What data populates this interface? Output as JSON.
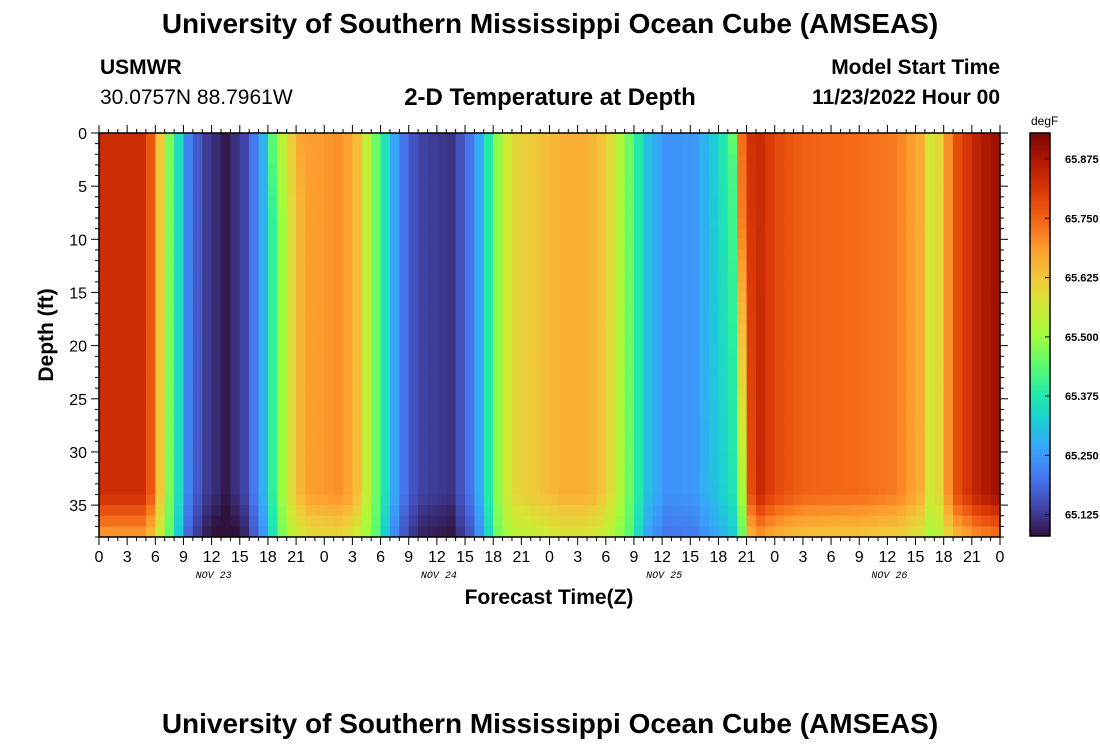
{
  "header": {
    "title": "University of Southern Mississippi Ocean Cube (AMSEAS)",
    "station": "USMWR",
    "coords": "30.0757N  88.7961W",
    "plot_title": "2-D Temperature at Depth",
    "start_label": "Model Start Time",
    "start_value": "11/23/2022 Hour 00"
  },
  "footer": {
    "title": "University of Southern Mississippi Ocean Cube (AMSEAS)"
  },
  "chart_data": {
    "type": "heatmap",
    "title": "2-D Temperature at Depth",
    "xlabel": "Forecast Time(Z)",
    "ylabel": "Depth (ft)",
    "x_ticks": [
      "0",
      "3",
      "6",
      "9",
      "12",
      "15",
      "18",
      "21",
      "0",
      "3",
      "6",
      "9",
      "12",
      "15",
      "18",
      "21",
      "0",
      "3",
      "6",
      "9",
      "12",
      "15",
      "18",
      "21",
      "0",
      "3",
      "6",
      "9",
      "12",
      "15",
      "18",
      "21",
      "0"
    ],
    "x_date_labels": [
      {
        "label": "NOV 23",
        "hour": 12
      },
      {
        "label": "NOV 24",
        "hour": 36
      },
      {
        "label": "NOV 25",
        "hour": 60
      },
      {
        "label": "NOV 26",
        "hour": 84
      }
    ],
    "xlim": [
      0,
      96
    ],
    "y_ticks": [
      0,
      5,
      10,
      15,
      20,
      25,
      30,
      35
    ],
    "ylim": [
      0,
      38
    ],
    "y_inverted": true,
    "colorbar": {
      "unit": "degF",
      "min": 65.08,
      "max": 65.93,
      "labels": [
        "65.875",
        "65.750",
        "65.625",
        "65.500",
        "65.375",
        "65.250",
        "65.125"
      ],
      "label_values": [
        65.875,
        65.75,
        65.625,
        65.5,
        65.375,
        65.25,
        65.125
      ]
    },
    "colormap": [
      "#30123b",
      "#4145ab",
      "#4675ed",
      "#39a2fc",
      "#1bcfd4",
      "#24eca6",
      "#61fc6c",
      "#a4fc3b",
      "#d1e834",
      "#f3c63a",
      "#fe9b2d",
      "#f36315",
      "#d93806",
      "#b11901",
      "#7a0403"
    ],
    "time_profile": [
      {
        "hour": 0,
        "temp": 65.83
      },
      {
        "hour": 5,
        "temp": 65.83
      },
      {
        "hour": 6.2,
        "temp": 65.68
      },
      {
        "hour": 7.2,
        "temp": 65.5
      },
      {
        "hour": 8.3,
        "temp": 65.38
      },
      {
        "hour": 9.5,
        "temp": 65.22
      },
      {
        "hour": 11,
        "temp": 65.14
      },
      {
        "hour": 13.5,
        "temp": 65.09
      },
      {
        "hour": 15.5,
        "temp": 65.14
      },
      {
        "hour": 17.3,
        "temp": 65.26
      },
      {
        "hour": 18.7,
        "temp": 65.42
      },
      {
        "hour": 20.3,
        "temp": 65.58
      },
      {
        "hour": 22,
        "temp": 65.68
      },
      {
        "hour": 26,
        "temp": 65.7
      },
      {
        "hour": 27.5,
        "temp": 65.64
      },
      {
        "hour": 29,
        "temp": 65.5
      },
      {
        "hour": 30.5,
        "temp": 65.36
      },
      {
        "hour": 32,
        "temp": 65.22
      },
      {
        "hour": 34,
        "temp": 65.14
      },
      {
        "hour": 37.5,
        "temp": 65.12
      },
      {
        "hour": 40,
        "temp": 65.22
      },
      {
        "hour": 41.5,
        "temp": 65.38
      },
      {
        "hour": 43,
        "temp": 65.54
      },
      {
        "hour": 44.5,
        "temp": 65.6
      },
      {
        "hour": 47,
        "temp": 65.63
      },
      {
        "hour": 49.5,
        "temp": 65.66
      },
      {
        "hour": 52,
        "temp": 65.66
      },
      {
        "hour": 54,
        "temp": 65.62
      },
      {
        "hour": 55.5,
        "temp": 65.52
      },
      {
        "hour": 57,
        "temp": 65.42
      },
      {
        "hour": 58.5,
        "temp": 65.3
      },
      {
        "hour": 60.5,
        "temp": 65.24
      },
      {
        "hour": 63.5,
        "temp": 65.25
      },
      {
        "hour": 65.5,
        "temp": 65.32
      },
      {
        "hour": 67.4,
        "temp": 65.42
      },
      {
        "hour": 68.3,
        "temp": 65.72
      },
      {
        "hour": 69.8,
        "temp": 65.85
      },
      {
        "hour": 72,
        "temp": 65.79
      },
      {
        "hour": 75,
        "temp": 65.75
      },
      {
        "hour": 81,
        "temp": 65.74
      },
      {
        "hour": 85,
        "temp": 65.72
      },
      {
        "hour": 87.5,
        "temp": 65.66
      },
      {
        "hour": 88.8,
        "temp": 65.54
      },
      {
        "hour": 89.8,
        "temp": 65.62
      },
      {
        "hour": 91,
        "temp": 65.76
      },
      {
        "hour": 93.5,
        "temp": 65.85
      },
      {
        "hour": 96,
        "temp": 65.9
      }
    ]
  }
}
